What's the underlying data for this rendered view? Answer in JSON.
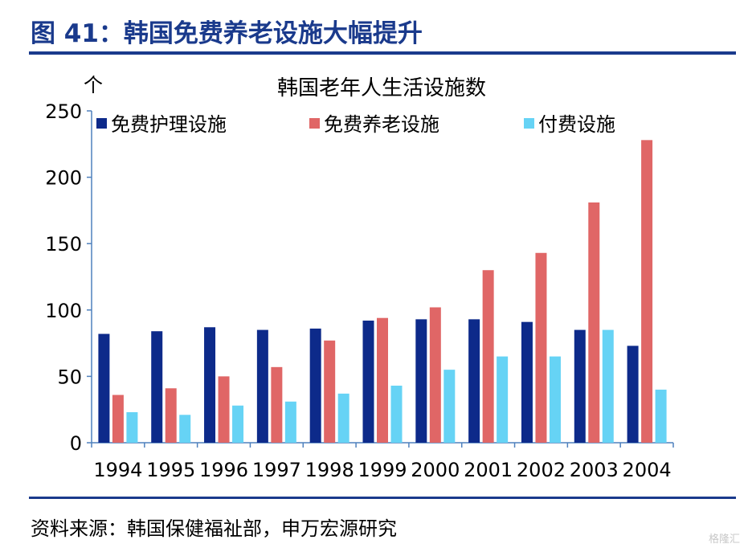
{
  "figure": {
    "title": "图 41：韩国免费养老设施大幅提升",
    "source": "资料来源：韩国保健福祉部，申万宏源研究",
    "watermark": "格隆汇"
  },
  "chart_data": {
    "type": "bar",
    "title": "韩国老年人生活设施数",
    "ylabel": "个",
    "xlabel": "",
    "ylim": [
      0,
      250
    ],
    "yticks": [
      0,
      50,
      100,
      150,
      200,
      250
    ],
    "grid": false,
    "legend_position": "top",
    "categories": [
      "1994",
      "1995",
      "1996",
      "1997",
      "1998",
      "1999",
      "2000",
      "2001",
      "2002",
      "2003",
      "2004"
    ],
    "series": [
      {
        "name": "免费护理设施",
        "color": "#0d2a8a",
        "values": [
          82,
          84,
          87,
          85,
          86,
          92,
          93,
          93,
          91,
          85,
          73
        ]
      },
      {
        "name": "免费养老设施",
        "color": "#e06666",
        "values": [
          36,
          41,
          50,
          57,
          77,
          94,
          102,
          130,
          143,
          181,
          228
        ]
      },
      {
        "name": "付费设施",
        "color": "#66d3f5",
        "values": [
          23,
          21,
          28,
          31,
          37,
          43,
          55,
          65,
          65,
          85,
          40
        ]
      }
    ]
  }
}
